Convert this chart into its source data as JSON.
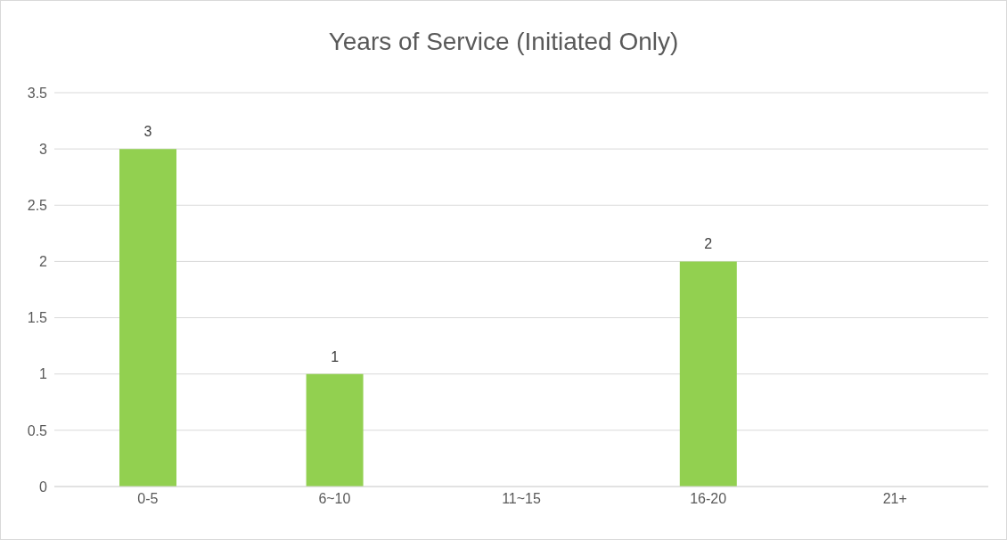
{
  "chart_data": {
    "type": "bar",
    "title": "Years of Service (Initiated Only)",
    "categories": [
      "0-5",
      "6~10",
      "11~15",
      "16-20",
      "21+"
    ],
    "values": [
      3,
      1,
      null,
      2,
      null
    ],
    "color": "#92d050",
    "ylim": [
      0,
      3.5
    ],
    "yticks": [
      0,
      0.5,
      1,
      1.5,
      2,
      2.5,
      3,
      3.5
    ],
    "grid": "y",
    "data_labels": true
  }
}
